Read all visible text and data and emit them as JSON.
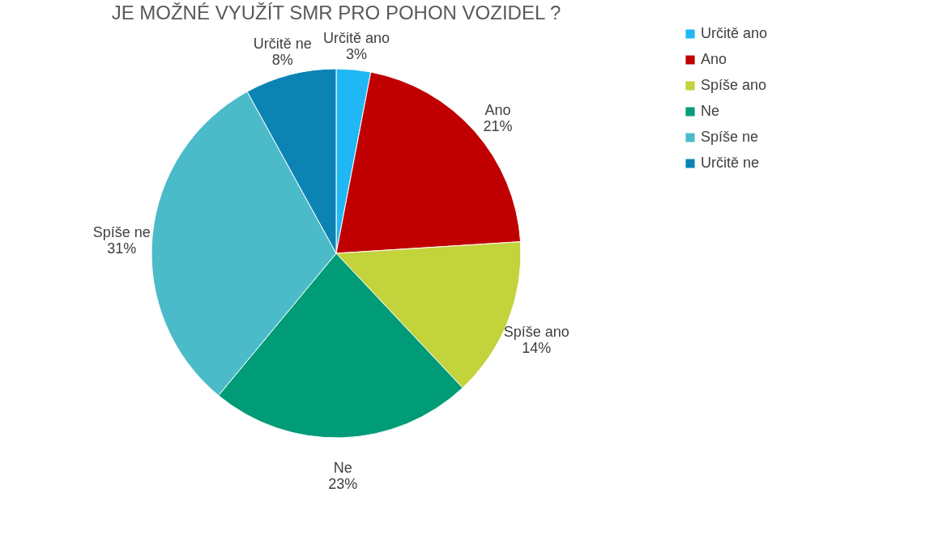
{
  "chart_data": {
    "type": "pie",
    "title": "JE MOŽNÉ VYUŽÍT SMR PRO POHON VOZIDEL ?",
    "categories": [
      "Určitě ano",
      "Ano",
      "Spíše ano",
      "Ne",
      "Spíše ne",
      "Určitě ne"
    ],
    "values": [
      3,
      21,
      14,
      23,
      31,
      8
    ],
    "colors": [
      "#1fb8f5",
      "#c00000",
      "#c2d33c",
      "#009b77",
      "#4bbbc9",
      "#0b84b4"
    ],
    "value_labels": [
      "3%",
      "21%",
      "14%",
      "23%",
      "31%",
      "8%"
    ],
    "legend": "right"
  }
}
